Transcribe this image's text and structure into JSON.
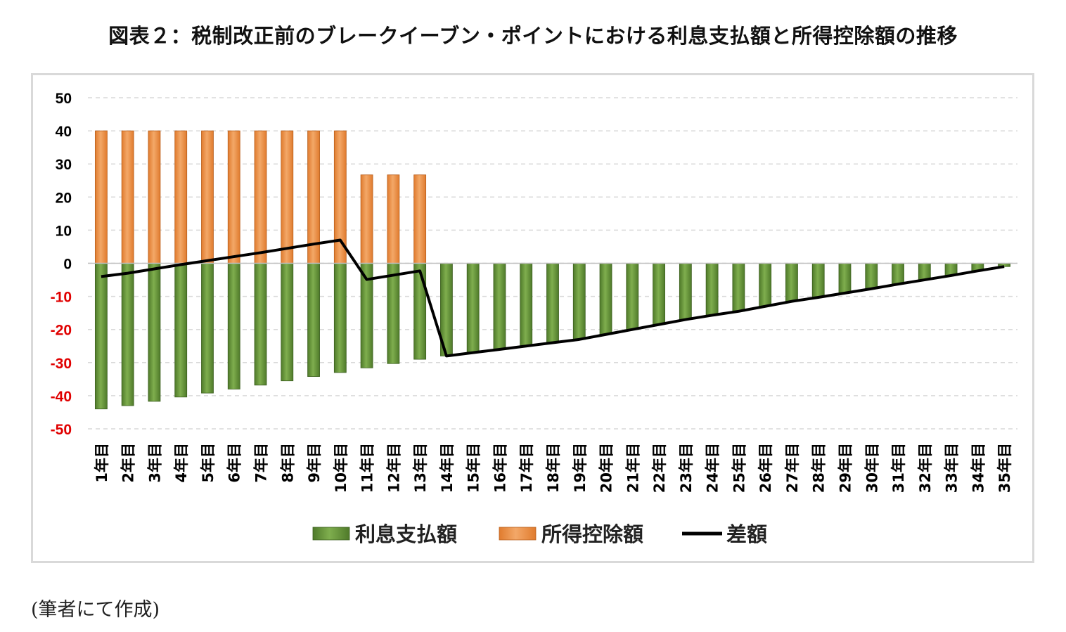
{
  "title": "図表２：税制改正前のブレークイーブン・ポイントにおける利息支払額と所得控除額の推移",
  "source": "(筆者にて作成)",
  "colors": {
    "interest": "#4f7a2a",
    "interest_light": "#7fae4e",
    "deduction": "#e07b2e",
    "deduction_light": "#f3a868",
    "difference": "#000000",
    "negative_tick": "#e00000",
    "positive_tick": "#000000",
    "grid": "#d9d9d9"
  },
  "chart_data": {
    "type": "bar",
    "categories": [
      "1年目",
      "2年目",
      "3年目",
      "4年目",
      "5年目",
      "6年目",
      "7年目",
      "8年目",
      "9年目",
      "10年目",
      "11年目",
      "12年目",
      "13年目",
      "14年目",
      "15年目",
      "16年目",
      "17年目",
      "18年目",
      "19年目",
      "20年目",
      "21年目",
      "22年目",
      "23年目",
      "24年目",
      "25年目",
      "26年目",
      "27年目",
      "28年目",
      "29年目",
      "30年目",
      "31年目",
      "32年目",
      "33年目",
      "34年目",
      "35年目"
    ],
    "ylim": [
      -50,
      50
    ],
    "yticks": [
      50,
      40,
      30,
      20,
      10,
      0,
      -10,
      -20,
      -30,
      -40,
      -50
    ],
    "grid": true,
    "legend_position": "bottom",
    "series": [
      {
        "name": "利息支払額",
        "kind": "bar",
        "values": [
          -44,
          -43,
          -41.7,
          -40.4,
          -39.2,
          -38,
          -36.8,
          -35.5,
          -34.2,
          -33,
          -31.6,
          -30.3,
          -29,
          -28,
          -27,
          -26,
          -25,
          -24,
          -23,
          -21.5,
          -20,
          -18.5,
          -17,
          -15.7,
          -14.5,
          -13,
          -11.5,
          -10.3,
          -9,
          -7.7,
          -6.3,
          -5,
          -3.7,
          -2.3,
          -1
        ]
      },
      {
        "name": "所得控除額",
        "kind": "bar",
        "values": [
          40,
          40,
          40,
          40,
          40,
          40,
          40,
          40,
          40,
          40,
          26.7,
          26.7,
          26.7,
          0,
          0,
          0,
          0,
          0,
          0,
          0,
          0,
          0,
          0,
          0,
          0,
          0,
          0,
          0,
          0,
          0,
          0,
          0,
          0,
          0,
          0
        ]
      },
      {
        "name": "差額",
        "kind": "line",
        "values": [
          -4,
          -3,
          -1.7,
          -0.4,
          0.8,
          2,
          3.2,
          4.5,
          5.8,
          7,
          -4.9,
          -3.6,
          -2.3,
          -28,
          -27,
          -26,
          -25,
          -24,
          -23,
          -21.5,
          -20,
          -18.5,
          -17,
          -15.7,
          -14.5,
          -13,
          -11.5,
          -10.3,
          -9,
          -7.7,
          -6.3,
          -5,
          -3.7,
          -2.3,
          -1
        ]
      }
    ]
  }
}
